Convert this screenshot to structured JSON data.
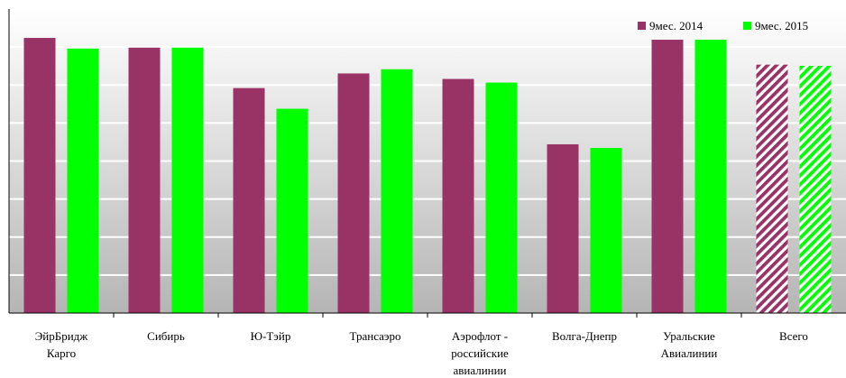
{
  "chart_data": {
    "type": "bar",
    "title": "",
    "xlabel": "",
    "ylabel": "",
    "ylim": [
      0,
      100
    ],
    "grid": true,
    "legend_position": "top-right",
    "categories": [
      [
        "ЭйрБридж",
        "Карго"
      ],
      [
        "Сибирь"
      ],
      [
        "Ю-Тэйр"
      ],
      [
        "Трансаэро"
      ],
      [
        "Аэрофлот -",
        "российские",
        "авиалинии"
      ],
      [
        "Волга-Днепр"
      ],
      [
        "Уральские",
        "Авиалинии"
      ],
      [
        "Всего"
      ]
    ],
    "series": [
      {
        "name": "9мес. 2014",
        "color": "#993366",
        "values": [
          90.5,
          87.3,
          74.0,
          78.8,
          77.0,
          55.5,
          89.9,
          81.7
        ]
      },
      {
        "name": "9мес. 2015",
        "color": "#00ff00",
        "values": [
          87.0,
          87.3,
          67.2,
          80.2,
          75.8,
          54.3,
          89.9,
          81.3
        ]
      }
    ],
    "hatched_categories": [
      7
    ]
  }
}
